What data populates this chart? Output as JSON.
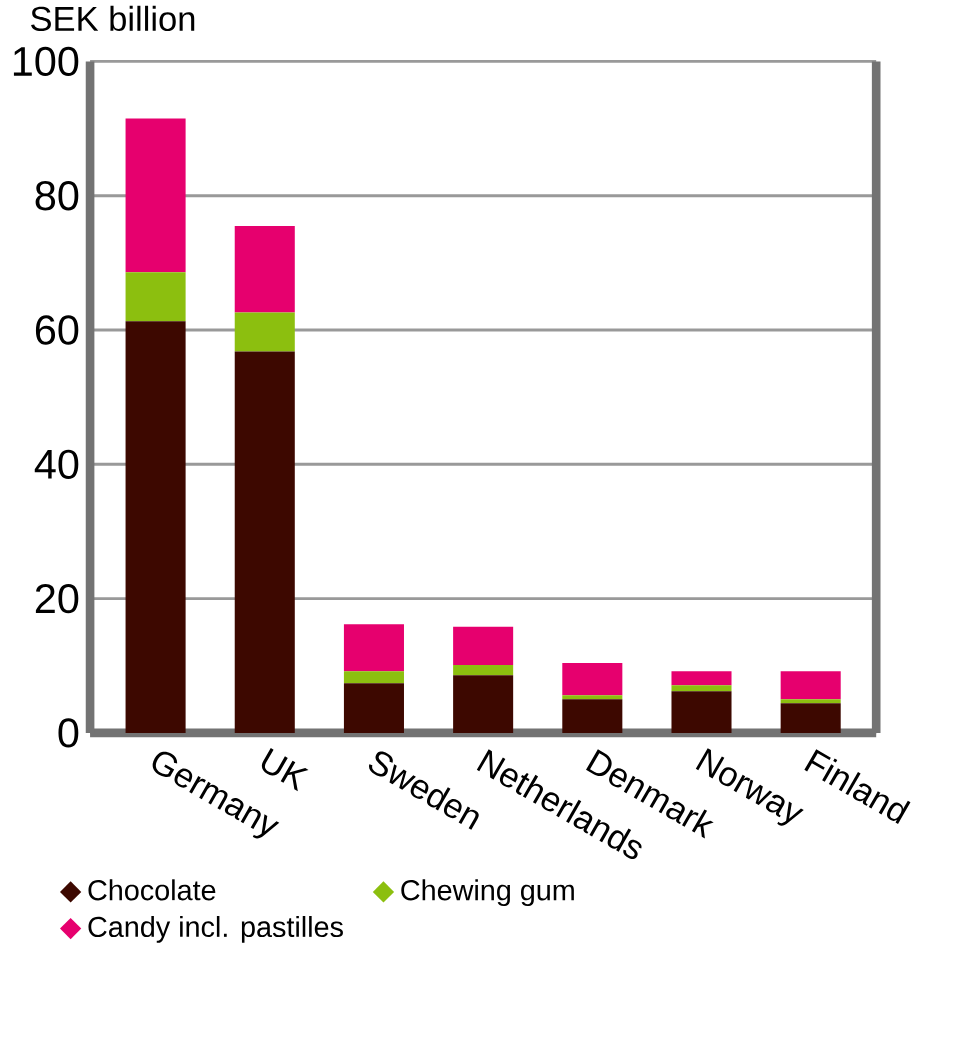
{
  "chart_data": {
    "type": "bar",
    "stacked": true,
    "ylabel": "SEK billion",
    "categories": [
      "Germany",
      "UK",
      "Sweden",
      "Netherlands",
      "Denmark",
      "Norway",
      "Finland"
    ],
    "series": [
      {
        "name": "Chocolate",
        "color": "#3d0800",
        "values": [
          61.3,
          56.8,
          7.4,
          8.6,
          5.0,
          6.2,
          4.4
        ]
      },
      {
        "name": "Chewing gum",
        "color": "#8cbf0f",
        "values": [
          7.3,
          5.8,
          1.8,
          1.5,
          0.6,
          0.9,
          0.6
        ]
      },
      {
        "name": "Candy incl. pastilles",
        "color": "#e6006e",
        "values": [
          22.9,
          12.9,
          7.0,
          5.7,
          4.8,
          2.1,
          4.2
        ]
      }
    ],
    "ylim": [
      0,
      100
    ],
    "yticks": [
      0,
      20,
      40,
      60,
      80,
      100
    ],
    "grid": "y",
    "legend": "bottom"
  }
}
